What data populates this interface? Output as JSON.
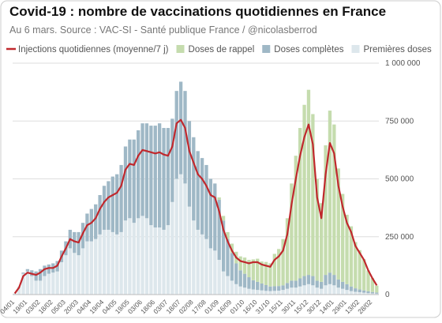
{
  "chart_data": {
    "type": "bar",
    "title": "Covid-19 : nombre de vaccinations quotidiennes en France",
    "subtitle": "Au 6 mars. Source : VAC-SI - Santé publique France / @nicolasberrod",
    "categories": [
      "04/01",
      null,
      null,
      "19/01",
      null,
      null,
      "03/02",
      null,
      null,
      "18/02",
      null,
      null,
      "05/03",
      null,
      null,
      "20/03",
      null,
      null,
      "04/04",
      null,
      null,
      "19/04",
      null,
      null,
      "04/05",
      null,
      null,
      "19/05",
      null,
      null,
      "03/06",
      null,
      null,
      "18/06",
      null,
      null,
      "03/07",
      null,
      null,
      "18/07",
      null,
      null,
      "02/08",
      null,
      null,
      "17/08",
      null,
      null,
      "01/09",
      null,
      null,
      "16/09",
      null,
      null,
      "01/10",
      null,
      null,
      "16/10",
      null,
      null,
      "31/10",
      null,
      null,
      "15/11",
      null,
      null,
      "30/11",
      null,
      null,
      "15/12",
      null,
      null,
      "30/12",
      null,
      null,
      "14/01",
      null,
      null,
      "29/01",
      null,
      null,
      "13/02",
      null,
      null,
      "28/02",
      null
    ],
    "series": [
      {
        "name": "Injections quotidiennes (moyenne/7 j)",
        "type": "line",
        "color": "#c0282d",
        "values": [
          5000,
          30000,
          80000,
          95000,
          90000,
          85000,
          95000,
          110000,
          115000,
          115000,
          125000,
          165000,
          200000,
          240000,
          230000,
          225000,
          265000,
          300000,
          310000,
          330000,
          370000,
          400000,
          420000,
          430000,
          440000,
          470000,
          540000,
          565000,
          560000,
          600000,
          625000,
          620000,
          615000,
          610000,
          615000,
          605000,
          600000,
          640000,
          740000,
          755000,
          720000,
          620000,
          570000,
          520000,
          500000,
          470000,
          430000,
          420000,
          360000,
          280000,
          230000,
          190000,
          160000,
          145000,
          140000,
          135000,
          140000,
          140000,
          130000,
          125000,
          120000,
          150000,
          165000,
          190000,
          260000,
          390000,
          500000,
          600000,
          680000,
          735000,
          650000,
          420000,
          330000,
          520000,
          655000,
          610000,
          470000,
          380000,
          310000,
          270000,
          210000,
          180000,
          150000,
          105000,
          70000,
          40000
        ]
      },
      {
        "name": "Doses de rappel",
        "type": "bar",
        "color": "#c5dcae",
        "values": [
          0,
          0,
          0,
          0,
          0,
          0,
          0,
          0,
          0,
          0,
          0,
          0,
          0,
          0,
          0,
          0,
          0,
          0,
          0,
          0,
          0,
          0,
          0,
          0,
          0,
          0,
          0,
          0,
          0,
          0,
          0,
          0,
          0,
          0,
          0,
          0,
          0,
          0,
          0,
          0,
          0,
          0,
          0,
          0,
          0,
          0,
          0,
          0,
          10000,
          20000,
          30000,
          40000,
          50000,
          60000,
          70000,
          75000,
          90000,
          100000,
          95000,
          100000,
          100000,
          140000,
          160000,
          200000,
          280000,
          420000,
          540000,
          650000,
          740000,
          800000,
          700000,
          440000,
          340000,
          560000,
          700000,
          650000,
          480000,
          380000,
          300000,
          260000,
          200000,
          170000,
          135000,
          90000,
          60000,
          30000
        ]
      },
      {
        "name": "Doses complètes",
        "type": "bar",
        "color": "#9fb8c6",
        "values": [
          0,
          0,
          5000,
          10000,
          25000,
          40000,
          50000,
          45000,
          40000,
          40000,
          45000,
          50000,
          60000,
          80000,
          90000,
          100000,
          110000,
          120000,
          140000,
          150000,
          170000,
          190000,
          210000,
          240000,
          260000,
          290000,
          320000,
          340000,
          360000,
          380000,
          400000,
          410000,
          430000,
          440000,
          450000,
          440000,
          420000,
          360000,
          380000,
          400000,
          400000,
          370000,
          360000,
          340000,
          330000,
          320000,
          300000,
          290000,
          260000,
          220000,
          160000,
          120000,
          90000,
          70000,
          60000,
          50000,
          40000,
          35000,
          30000,
          25000,
          20000,
          20000,
          20000,
          20000,
          25000,
          30000,
          30000,
          35000,
          40000,
          40000,
          40000,
          30000,
          30000,
          45000,
          50000,
          45000,
          35000,
          30000,
          25000,
          20000,
          15000,
          12000,
          10000,
          8000,
          6000,
          5000
        ]
      },
      {
        "name": "Premières doses",
        "type": "bar",
        "color": "#dde7ec",
        "values": [
          5000,
          35000,
          90000,
          100000,
          80000,
          60000,
          60000,
          80000,
          90000,
          95000,
          100000,
          140000,
          170000,
          200000,
          180000,
          170000,
          200000,
          230000,
          230000,
          240000,
          260000,
          280000,
          280000,
          270000,
          260000,
          270000,
          320000,
          330000,
          310000,
          330000,
          340000,
          330000,
          300000,
          290000,
          290000,
          280000,
          300000,
          400000,
          500000,
          520000,
          480000,
          380000,
          320000,
          280000,
          260000,
          240000,
          200000,
          190000,
          150000,
          100000,
          80000,
          60000,
          45000,
          35000,
          30000,
          25000,
          22000,
          20000,
          18000,
          16000,
          15000,
          16000,
          17000,
          20000,
          25000,
          30000,
          30000,
          35000,
          40000,
          45000,
          40000,
          30000,
          25000,
          40000,
          45000,
          40000,
          30000,
          25000,
          20000,
          15000,
          12000,
          10000,
          8000,
          6000,
          5000,
          4000
        ]
      }
    ],
    "ylim": [
      0,
      1000000
    ],
    "yticks": [
      0,
      {
        "value": 250000,
        "label": "250 000"
      },
      {
        "value": 500000,
        "label": "500 000"
      },
      {
        "value": 750000,
        "label": "750 000"
      },
      {
        "value": 1000000,
        "label": "1 000 000"
      }
    ],
    "grid": true
  }
}
